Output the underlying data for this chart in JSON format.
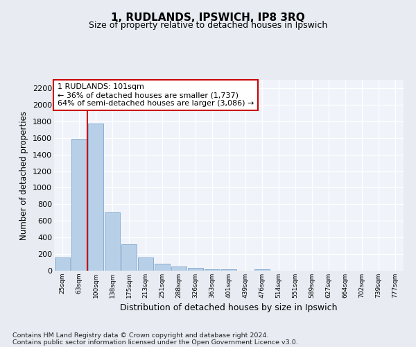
{
  "title": "1, RUDLANDS, IPSWICH, IP8 3RQ",
  "subtitle": "Size of property relative to detached houses in Ipswich",
  "xlabel": "Distribution of detached houses by size in Ipswich",
  "ylabel": "Number of detached properties",
  "categories": [
    "25sqm",
    "63sqm",
    "100sqm",
    "138sqm",
    "175sqm",
    "213sqm",
    "251sqm",
    "288sqm",
    "326sqm",
    "363sqm",
    "401sqm",
    "439sqm",
    "476sqm",
    "514sqm",
    "551sqm",
    "589sqm",
    "627sqm",
    "664sqm",
    "702sqm",
    "739sqm",
    "777sqm"
  ],
  "values": [
    160,
    1590,
    1770,
    700,
    320,
    155,
    85,
    50,
    30,
    20,
    15,
    0,
    20,
    0,
    0,
    0,
    0,
    0,
    0,
    0,
    0
  ],
  "bar_color": "#b8cfe8",
  "bar_edge_color": "#8aafd4",
  "red_line_x": 1.5,
  "annotation_text": "1 RUDLANDS: 101sqm\n← 36% of detached houses are smaller (1,737)\n64% of semi-detached houses are larger (3,086) →",
  "annotation_box_facecolor": "#ffffff",
  "annotation_box_edgecolor": "#cc0000",
  "fig_background_color": "#e8ecf2",
  "plot_background_color": "#f0f4fa",
  "grid_color": "#ffffff",
  "ylim": [
    0,
    2300
  ],
  "yticks": [
    0,
    200,
    400,
    600,
    800,
    1000,
    1200,
    1400,
    1600,
    1800,
    2000,
    2200
  ],
  "footer_line1": "Contains HM Land Registry data © Crown copyright and database right 2024.",
  "footer_line2": "Contains public sector information licensed under the Open Government Licence v3.0."
}
